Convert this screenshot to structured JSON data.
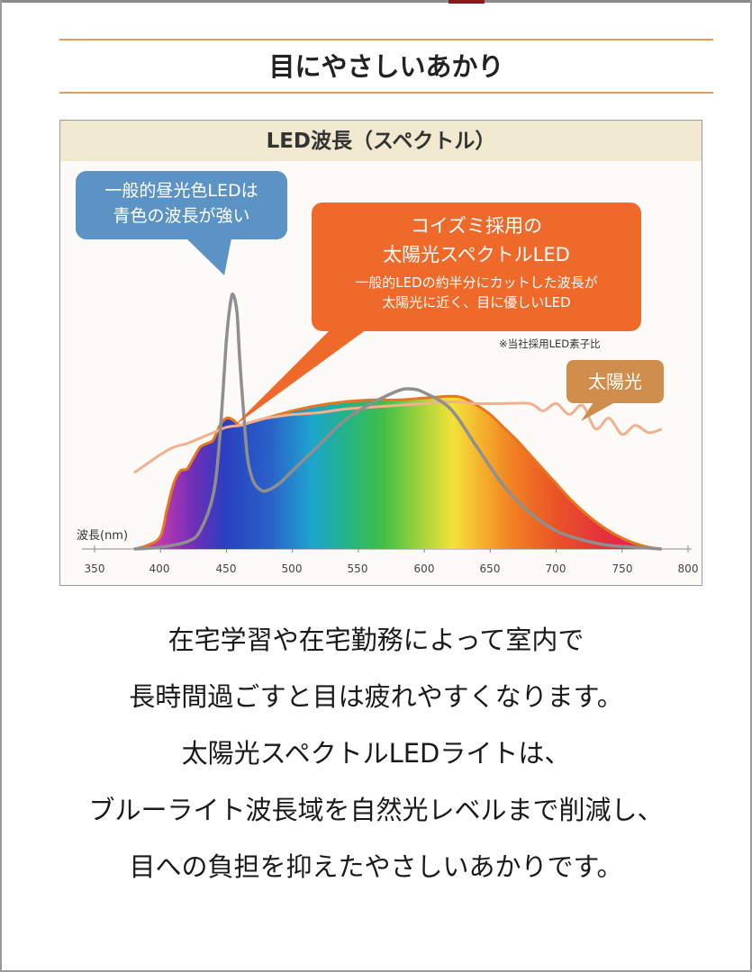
{
  "page": {
    "section_title": "目にやさしいあかり",
    "body_lines": [
      "在宅学習や在宅勤務によって室内で",
      "長時間過ごすと目は疲れやすくなります。",
      "太陽光スペクトルLEDライトは、",
      "ブルーライト波長域を自然光レベルまで削減し、",
      "目への負担を抑えたやさしいあかりです。"
    ]
  },
  "chart_data": {
    "type": "line",
    "title": "LED波長（スペクトル）",
    "xlabel": "波長(nm)",
    "ylabel": "",
    "xlim": [
      350,
      800
    ],
    "x_ticks": [
      350,
      400,
      450,
      500,
      550,
      600,
      650,
      700,
      750,
      800
    ],
    "x_tick_labels": [
      "350",
      "400",
      "450",
      "500",
      "550",
      "600",
      "650",
      "700",
      "750",
      "800"
    ],
    "grid": false,
    "note": "※当社採用LED素子比",
    "series": [
      {
        "name": "太陽光スペクトルLED",
        "style": "filled-rainbow",
        "color": "#e8761f",
        "x": [
          380,
          390,
          400,
          405,
          410,
          415,
          420,
          425,
          430,
          435,
          440,
          445,
          450,
          455,
          460,
          465,
          470,
          480,
          490,
          500,
          520,
          540,
          560,
          580,
          600,
          620,
          630,
          640,
          650,
          660,
          670,
          680,
          690,
          700,
          710,
          720,
          730,
          740,
          750,
          760,
          770,
          780
        ],
        "values": [
          0.0,
          0.02,
          0.07,
          0.22,
          0.36,
          0.43,
          0.44,
          0.5,
          0.56,
          0.58,
          0.6,
          0.68,
          0.72,
          0.71,
          0.68,
          0.69,
          0.7,
          0.72,
          0.74,
          0.76,
          0.79,
          0.81,
          0.82,
          0.82,
          0.83,
          0.84,
          0.83,
          0.79,
          0.74,
          0.67,
          0.6,
          0.52,
          0.44,
          0.36,
          0.28,
          0.21,
          0.15,
          0.1,
          0.06,
          0.03,
          0.01,
          0.0
        ]
      },
      {
        "name": "一般的昼光色LED",
        "style": "line",
        "color": "#8f8f8f",
        "x": [
          380,
          400,
          420,
          430,
          440,
          445,
          450,
          453,
          455,
          458,
          460,
          463,
          466,
          470,
          475,
          480,
          490,
          500,
          520,
          540,
          560,
          580,
          590,
          600,
          620,
          640,
          660,
          680,
          700,
          720,
          740,
          760,
          780
        ],
        "values": [
          0.0,
          0.01,
          0.04,
          0.1,
          0.3,
          0.62,
          1.15,
          1.35,
          1.4,
          1.3,
          1.05,
          0.75,
          0.5,
          0.38,
          0.33,
          0.32,
          0.36,
          0.43,
          0.57,
          0.71,
          0.8,
          0.87,
          0.88,
          0.86,
          0.77,
          0.56,
          0.35,
          0.2,
          0.1,
          0.05,
          0.02,
          0.01,
          0.0
        ]
      },
      {
        "name": "太陽光",
        "style": "line",
        "color": "#f2b08e",
        "x": [
          380,
          390,
          400,
          410,
          420,
          430,
          440,
          450,
          460,
          470,
          480,
          490,
          500,
          520,
          540,
          560,
          580,
          600,
          620,
          640,
          660,
          680,
          690,
          700,
          710,
          720,
          730,
          740,
          750,
          760,
          770,
          780
        ],
        "values": [
          0.42,
          0.47,
          0.52,
          0.56,
          0.58,
          0.61,
          0.64,
          0.67,
          0.68,
          0.7,
          0.72,
          0.73,
          0.74,
          0.75,
          0.77,
          0.78,
          0.79,
          0.8,
          0.81,
          0.8,
          0.8,
          0.8,
          0.76,
          0.8,
          0.74,
          0.79,
          0.66,
          0.72,
          0.63,
          0.68,
          0.64,
          0.66
        ]
      }
    ],
    "annotations": [
      {
        "name": "daylight-led-callout",
        "lines": [
          "一般的昼光色LEDは",
          "青色の波長が強い"
        ],
        "color": "#5c93c5"
      },
      {
        "name": "koizumi-led-callout",
        "lines": [
          "コイズミ採用の",
          "太陽光スペクトルLED"
        ],
        "detail": [
          "一般的LEDの約半分にカットした波長が",
          "太陽光に近く、目に優しいLED"
        ],
        "color": "#ef6a2a"
      },
      {
        "name": "sunlight-callout",
        "lines": [
          "太陽光"
        ],
        "color": "#cf8e4b"
      }
    ]
  }
}
